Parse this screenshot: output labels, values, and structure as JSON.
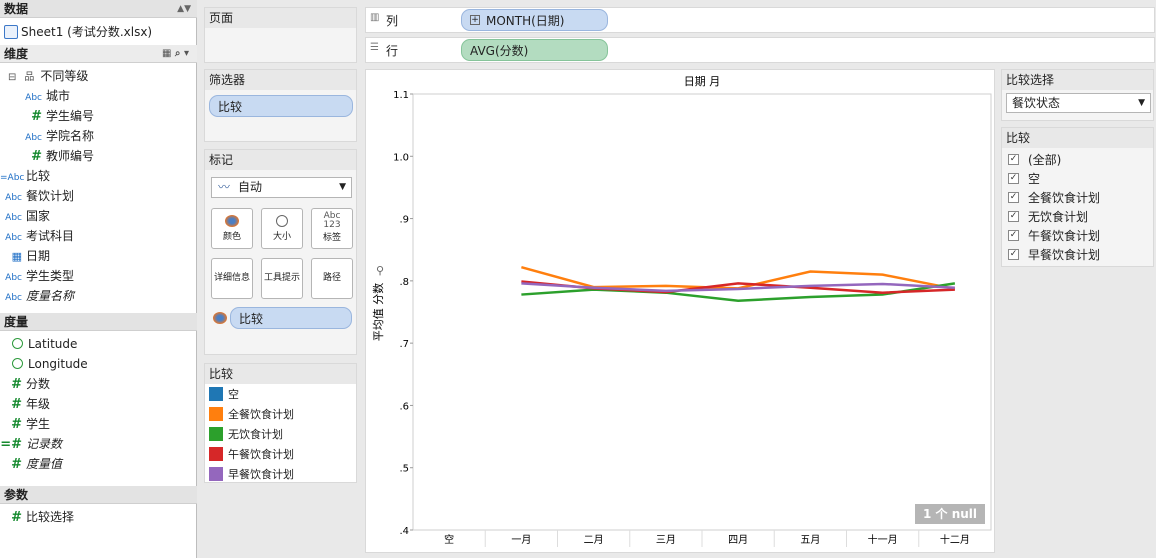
{
  "data_pane": {
    "title": "数据",
    "source": "Sheet1 (考试分数.xlsx)",
    "dimensions_title": "维度",
    "measures_title": "度量",
    "params_title": "参数",
    "dimensions": [
      {
        "icon": "Abc",
        "label": "城市"
      },
      {
        "icon": "#",
        "label": "学生编号"
      },
      {
        "icon": "Abc",
        "label": "学院名称"
      },
      {
        "icon": "#",
        "label": "教师编号"
      }
    ],
    "hier": "不同等级",
    "dimensions2": [
      {
        "icon": "=Abc",
        "label": "比较"
      },
      {
        "icon": "Abc",
        "label": "餐饮计划"
      },
      {
        "icon": "Abc",
        "label": "国家"
      },
      {
        "icon": "Abc",
        "label": "考试科目"
      },
      {
        "icon": "cal",
        "label": "日期"
      },
      {
        "icon": "Abc",
        "label": "学生类型"
      },
      {
        "icon": "Abc",
        "label": "度量名称"
      }
    ],
    "measures": [
      {
        "icon": "globe",
        "label": "Latitude"
      },
      {
        "icon": "globe",
        "label": "Longitude"
      },
      {
        "icon": "#",
        "label": "分数"
      },
      {
        "icon": "#",
        "label": "年级"
      },
      {
        "icon": "#",
        "label": "学生"
      },
      {
        "icon": "=#",
        "label": "记录数"
      },
      {
        "icon": "#",
        "label": "度量值"
      }
    ],
    "params": [
      {
        "icon": "#",
        "label": "比较选择"
      }
    ]
  },
  "cards": {
    "pages": "页面",
    "filters": "筛选器",
    "filter_pill": "比较",
    "marks": "标记",
    "mark_type": "自动",
    "btn_color": "颜色",
    "btn_size": "大小",
    "btn_label": "标签",
    "btn_detail": "详细信息",
    "btn_tooltip": "工具提示",
    "btn_path": "路径",
    "color_pill": "比较",
    "abc": "Abc",
    "n123": "123"
  },
  "legend": {
    "title": "比较",
    "items": [
      {
        "label": "空",
        "color": "#1f77b4"
      },
      {
        "label": "全餐饮食计划",
        "color": "#ff7f0e"
      },
      {
        "label": "无饮食计划",
        "color": "#2ca02c"
      },
      {
        "label": "午餐饮食计划",
        "color": "#d62728"
      },
      {
        "label": "早餐饮食计划",
        "color": "#9467bd"
      }
    ]
  },
  "shelves": {
    "columns_label": "列",
    "rows_label": "行",
    "columns_pill": "MONTH(日期)",
    "rows_pill": "AVG(分数)"
  },
  "param_card": {
    "title": "比较选择",
    "value": "餐饮状态"
  },
  "filter_card": {
    "title": "比较",
    "items": [
      "(全部)",
      "空",
      "全餐饮食计划",
      "无饮食计划",
      "午餐饮食计划",
      "早餐饮食计划"
    ]
  },
  "null_badge": "1 个 null",
  "chart_data": {
    "type": "line",
    "title": "日期 月",
    "xlabel": "",
    "ylabel": "平均值 分数",
    "ylim": [
      0.4,
      1.1
    ],
    "yticks": [
      ".4",
      ".5",
      ".6",
      ".7",
      ".8",
      ".9",
      "1.0",
      "1.1"
    ],
    "categories": [
      "空",
      "一月",
      "二月",
      "三月",
      "四月",
      "五月",
      "十一月",
      "十二月"
    ],
    "series": [
      {
        "name": "全餐饮食计划",
        "color": "#ff7f0e",
        "values": [
          null,
          0.822,
          0.79,
          0.792,
          0.788,
          0.815,
          0.81,
          0.787
        ]
      },
      {
        "name": "无饮食计划",
        "color": "#2ca02c",
        "values": [
          null,
          0.778,
          0.786,
          0.781,
          0.768,
          0.774,
          0.778,
          0.796
        ]
      },
      {
        "name": "午餐饮食计划",
        "color": "#d62728",
        "values": [
          null,
          0.799,
          0.788,
          0.782,
          0.796,
          0.789,
          0.781,
          0.786
        ]
      },
      {
        "name": "早餐饮食计划",
        "color": "#9467bd",
        "values": [
          null,
          0.796,
          0.789,
          0.784,
          0.787,
          0.792,
          0.795,
          0.789
        ]
      }
    ]
  }
}
